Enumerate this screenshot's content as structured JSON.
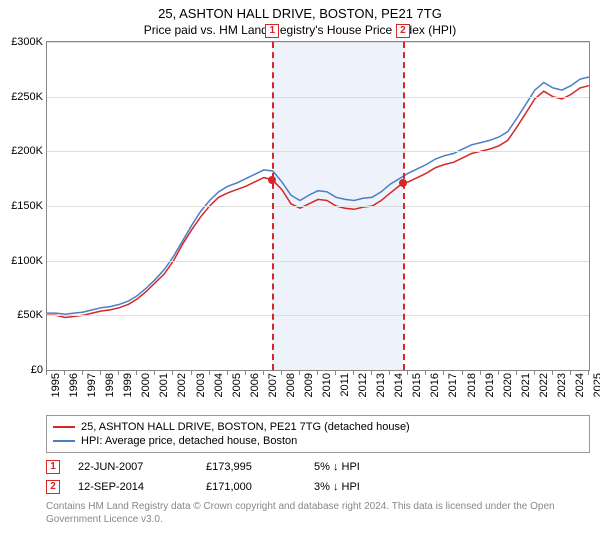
{
  "title": "25, ASHTON HALL DRIVE, BOSTON, PE21 7TG",
  "subtitle": "Price paid vs. HM Land Registry's House Price Index (HPI)",
  "chart": {
    "type": "line",
    "background_color": "#ffffff",
    "grid_color": "#dddddd",
    "axis_color": "#888888",
    "ylim": [
      0,
      300000
    ],
    "ytick_step": 50000,
    "ylabels": [
      "£0",
      "£50K",
      "£100K",
      "£150K",
      "£200K",
      "£250K",
      "£300K"
    ],
    "x_year_start": 1995,
    "x_year_end": 2025,
    "x_year_labels": [
      "1995",
      "1996",
      "1997",
      "1998",
      "1999",
      "2000",
      "2001",
      "2002",
      "2003",
      "2004",
      "2005",
      "2006",
      "2007",
      "2008",
      "2009",
      "2010",
      "2011",
      "2012",
      "2013",
      "2014",
      "2015",
      "2016",
      "2017",
      "2018",
      "2019",
      "2020",
      "2021",
      "2022",
      "2023",
      "2024",
      "2025"
    ],
    "shaded_band": {
      "start_year": 2007.47,
      "end_year": 2014.7,
      "color": "#eef2fa"
    },
    "series": [
      {
        "name": "property",
        "label": "25, ASHTON HALL DRIVE, BOSTON, PE21 7TG (detached house)",
        "color": "#d62728",
        "line_width": 1.5,
        "points": [
          [
            1995.0,
            50000
          ],
          [
            1995.5,
            50000
          ],
          [
            1996.0,
            48000
          ],
          [
            1996.5,
            49000
          ],
          [
            1997.0,
            50000
          ],
          [
            1997.5,
            52000
          ],
          [
            1998.0,
            54000
          ],
          [
            1998.5,
            55000
          ],
          [
            1999.0,
            57000
          ],
          [
            1999.5,
            60000
          ],
          [
            2000.0,
            65000
          ],
          [
            2000.5,
            72000
          ],
          [
            2001.0,
            80000
          ],
          [
            2001.5,
            88000
          ],
          [
            2002.0,
            100000
          ],
          [
            2002.5,
            115000
          ],
          [
            2003.0,
            128000
          ],
          [
            2003.5,
            140000
          ],
          [
            2004.0,
            150000
          ],
          [
            2004.5,
            158000
          ],
          [
            2005.0,
            162000
          ],
          [
            2005.5,
            165000
          ],
          [
            2006.0,
            168000
          ],
          [
            2006.5,
            172000
          ],
          [
            2007.0,
            176000
          ],
          [
            2007.47,
            173995
          ],
          [
            2008.0,
            165000
          ],
          [
            2008.5,
            152000
          ],
          [
            2009.0,
            148000
          ],
          [
            2009.5,
            152000
          ],
          [
            2010.0,
            156000
          ],
          [
            2010.5,
            155000
          ],
          [
            2011.0,
            150000
          ],
          [
            2011.5,
            148000
          ],
          [
            2012.0,
            147000
          ],
          [
            2012.5,
            149000
          ],
          [
            2013.0,
            150000
          ],
          [
            2013.5,
            155000
          ],
          [
            2014.0,
            162000
          ],
          [
            2014.7,
            171000
          ],
          [
            2015.0,
            172000
          ],
          [
            2015.5,
            176000
          ],
          [
            2016.0,
            180000
          ],
          [
            2016.5,
            185000
          ],
          [
            2017.0,
            188000
          ],
          [
            2017.5,
            190000
          ],
          [
            2018.0,
            194000
          ],
          [
            2018.5,
            198000
          ],
          [
            2019.0,
            200000
          ],
          [
            2019.5,
            202000
          ],
          [
            2020.0,
            205000
          ],
          [
            2020.5,
            210000
          ],
          [
            2021.0,
            222000
          ],
          [
            2021.5,
            235000
          ],
          [
            2022.0,
            248000
          ],
          [
            2022.5,
            255000
          ],
          [
            2023.0,
            250000
          ],
          [
            2023.5,
            248000
          ],
          [
            2024.0,
            252000
          ],
          [
            2024.5,
            258000
          ],
          [
            2025.0,
            260000
          ]
        ]
      },
      {
        "name": "hpi",
        "label": "HPI: Average price, detached house, Boston",
        "color": "#4a7fc4",
        "line_width": 1.5,
        "points": [
          [
            1995.0,
            52000
          ],
          [
            1995.5,
            52000
          ],
          [
            1996.0,
            51000
          ],
          [
            1996.5,
            52000
          ],
          [
            1997.0,
            53000
          ],
          [
            1997.5,
            55000
          ],
          [
            1998.0,
            57000
          ],
          [
            1998.5,
            58000
          ],
          [
            1999.0,
            60000
          ],
          [
            1999.5,
            63000
          ],
          [
            2000.0,
            68000
          ],
          [
            2000.5,
            75000
          ],
          [
            2001.0,
            83000
          ],
          [
            2001.5,
            92000
          ],
          [
            2002.0,
            104000
          ],
          [
            2002.5,
            118000
          ],
          [
            2003.0,
            132000
          ],
          [
            2003.5,
            145000
          ],
          [
            2004.0,
            155000
          ],
          [
            2004.5,
            163000
          ],
          [
            2005.0,
            168000
          ],
          [
            2005.5,
            171000
          ],
          [
            2006.0,
            175000
          ],
          [
            2006.5,
            179000
          ],
          [
            2007.0,
            183000
          ],
          [
            2007.5,
            182000
          ],
          [
            2008.0,
            172000
          ],
          [
            2008.5,
            160000
          ],
          [
            2009.0,
            155000
          ],
          [
            2009.5,
            160000
          ],
          [
            2010.0,
            164000
          ],
          [
            2010.5,
            163000
          ],
          [
            2011.0,
            158000
          ],
          [
            2011.5,
            156000
          ],
          [
            2012.0,
            155000
          ],
          [
            2012.5,
            157000
          ],
          [
            2013.0,
            158000
          ],
          [
            2013.5,
            163000
          ],
          [
            2014.0,
            170000
          ],
          [
            2014.7,
            177000
          ],
          [
            2015.0,
            180000
          ],
          [
            2015.5,
            184000
          ],
          [
            2016.0,
            188000
          ],
          [
            2016.5,
            193000
          ],
          [
            2017.0,
            196000
          ],
          [
            2017.5,
            198000
          ],
          [
            2018.0,
            202000
          ],
          [
            2018.5,
            206000
          ],
          [
            2019.0,
            208000
          ],
          [
            2019.5,
            210000
          ],
          [
            2020.0,
            213000
          ],
          [
            2020.5,
            218000
          ],
          [
            2021.0,
            230000
          ],
          [
            2021.5,
            243000
          ],
          [
            2022.0,
            256000
          ],
          [
            2022.5,
            263000
          ],
          [
            2023.0,
            258000
          ],
          [
            2023.5,
            256000
          ],
          [
            2024.0,
            260000
          ],
          [
            2024.5,
            266000
          ],
          [
            2025.0,
            268000
          ]
        ]
      }
    ],
    "markers": [
      {
        "id": "1",
        "year": 2007.47,
        "value": 173995,
        "color": "#d62728"
      },
      {
        "id": "2",
        "year": 2014.7,
        "value": 171000,
        "color": "#d62728"
      }
    ]
  },
  "legend": {
    "items": [
      {
        "color": "#d62728",
        "label": "25, ASHTON HALL DRIVE, BOSTON, PE21 7TG (detached house)"
      },
      {
        "color": "#4a7fc4",
        "label": "HPI: Average price, detached house, Boston"
      }
    ]
  },
  "sales": [
    {
      "marker": "1",
      "marker_color": "#d62728",
      "date": "22-JUN-2007",
      "price": "£173,995",
      "pct": "5% ↓ HPI"
    },
    {
      "marker": "2",
      "marker_color": "#d62728",
      "date": "12-SEP-2014",
      "price": "£171,000",
      "pct": "3% ↓ HPI"
    }
  ],
  "footnote": "Contains HM Land Registry data © Crown copyright and database right 2024. This data is licensed under the Open Government Licence v3.0."
}
